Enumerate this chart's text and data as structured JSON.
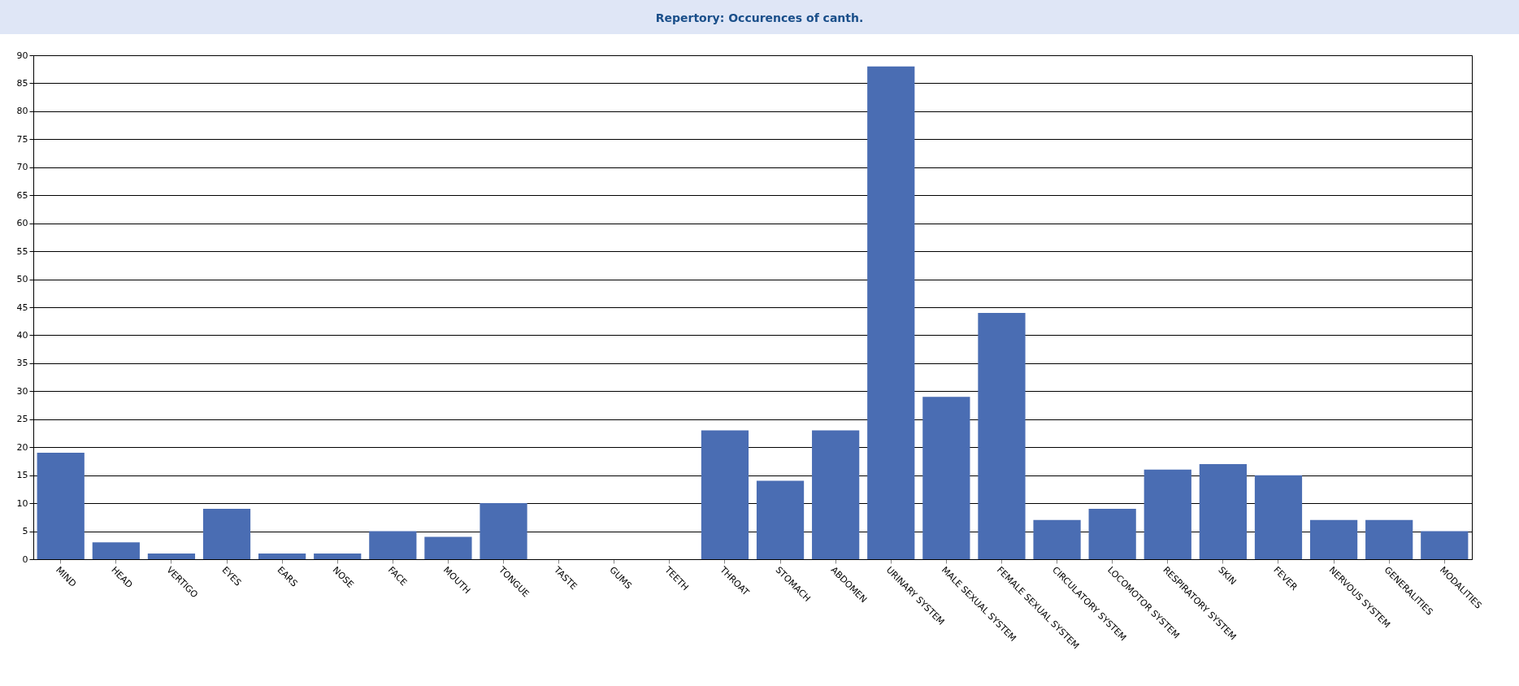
{
  "chart_data": {
    "type": "bar",
    "title": "Repertory: Occurences of canth.",
    "categories": [
      "MIND",
      "HEAD",
      "VERTIGO",
      "EYES",
      "EARS",
      "NOSE",
      "FACE",
      "MOUTH",
      "TONGUE",
      "TASTE",
      "GUMS",
      "TEETH",
      "THROAT",
      "STOMACH",
      "ABDOMEN",
      "URINARY SYSTEM",
      "MALE SEXUAL SYSTEM",
      "FEMALE SEXUAL SYSTEM",
      "CIRCULATORY SYSTEM",
      "LOCOMOTOR SYSTEM",
      "RESPIRATORY SYSTEM",
      "SKIN",
      "FEVER",
      "NERVOUS SYSTEM",
      "GENERALITIES",
      "MODALITIES"
    ],
    "values": [
      19,
      3,
      1,
      9,
      1,
      1,
      5,
      4,
      10,
      0,
      0,
      0,
      23,
      14,
      23,
      88,
      29,
      44,
      7,
      9,
      16,
      17,
      15,
      7,
      7,
      5
    ],
    "color": "#4a6db3",
    "ylim": [
      0,
      90
    ],
    "yticks": [
      0,
      5,
      10,
      15,
      20,
      25,
      30,
      35,
      40,
      45,
      50,
      55,
      60,
      65,
      70,
      75,
      80,
      85,
      90
    ],
    "grid": "y"
  }
}
